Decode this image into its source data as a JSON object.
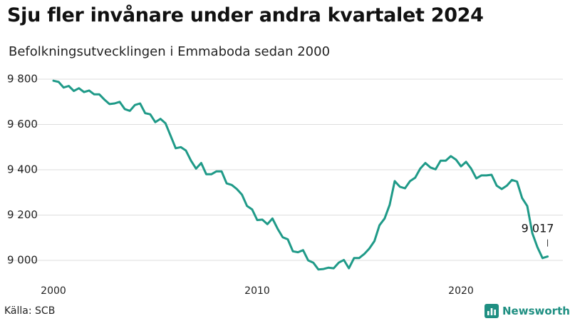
{
  "title": "Sju fler invånare under andra kvartalet 2024",
  "subtitle": "Befolkningsutvecklingen i Emmaboda sedan 2000",
  "source": "Källa: SCB",
  "brand": {
    "name": "Newsworthy",
    "icon": "newsworthy-logo-icon"
  },
  "colors": {
    "line": "#1f9a88",
    "grid": "#dddddd",
    "brand": "#1f8f82"
  },
  "chart_data": {
    "type": "line",
    "title": "Sju fler invånare under andra kvartalet 2024",
    "subtitle": "Befolkningsutvecklingen i Emmaboda sedan 2000",
    "xlabel": "",
    "ylabel": "",
    "frequency": "quarterly",
    "x_start": "2000 Q1",
    "x_end": "2024 Q2",
    "xlim": [
      2000,
      2024.5
    ],
    "ylim": [
      8910,
      9830
    ],
    "y_ticks": [
      9000,
      9200,
      9400,
      9600,
      9800
    ],
    "y_tick_labels": [
      "9 000",
      "9 200",
      "9 400",
      "9 600",
      "9 800"
    ],
    "x_ticks": [
      2000,
      2010,
      2020
    ],
    "x_tick_labels": [
      "2000",
      "2010",
      "2020"
    ],
    "grid": "horizontal",
    "annotation": {
      "text": "9 017",
      "value": 9017,
      "period": "2024 Q2"
    },
    "series": [
      {
        "values": [
          9793,
          9788,
          9763,
          9770,
          9748,
          9760,
          9743,
          9750,
          9733,
          9733,
          9710,
          9690,
          9693,
          9700,
          9668,
          9660,
          9686,
          9693,
          9650,
          9645,
          9610,
          9625,
          9605,
          9550,
          9495,
          9500,
          9485,
          9440,
          9405,
          9430,
          9380,
          9380,
          9393,
          9393,
          9340,
          9333,
          9315,
          9290,
          9240,
          9225,
          9178,
          9180,
          9160,
          9185,
          9140,
          9102,
          9093,
          9040,
          9036,
          9045,
          9000,
          8990,
          8960,
          8962,
          8968,
          8965,
          8990,
          9002,
          8965,
          9010,
          9010,
          9028,
          9052,
          9085,
          9155,
          9185,
          9245,
          9350,
          9325,
          9318,
          9350,
          9365,
          9405,
          9430,
          9410,
          9402,
          9440,
          9440,
          9460,
          9445,
          9415,
          9435,
          9405,
          9362,
          9375,
          9375,
          9378,
          9330,
          9315,
          9330,
          9355,
          9348,
          9275,
          9240,
          9120,
          9058,
          9010,
          9017
        ]
      }
    ]
  }
}
